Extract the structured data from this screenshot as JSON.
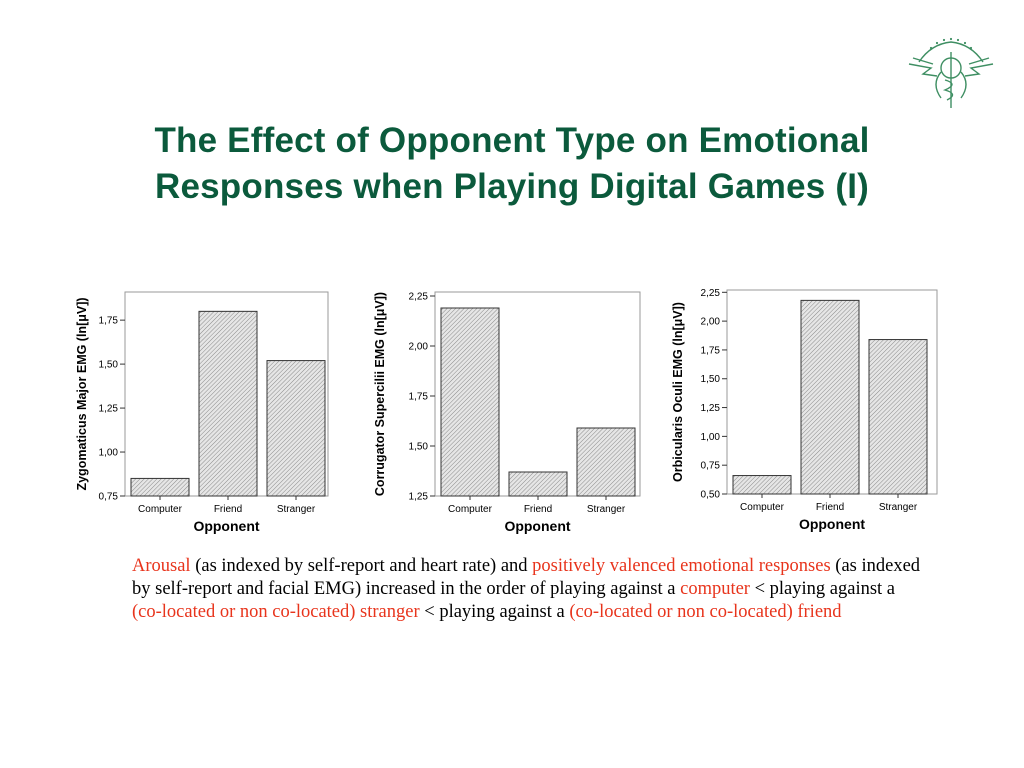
{
  "slide": {
    "title_line1": "The Effect of Opponent Type on Emotional",
    "title_line2": "Responses when Playing Digital Games (I)",
    "title_color": "#0b5a3c",
    "highlight_color": "#e8341c"
  },
  "note": {
    "s1": "Arousal",
    "s2": " (as indexed by self-report and heart rate) and ",
    "s3": "positively valenced emotional responses",
    "s4": " (as indexed by self-report and facial EMG) increased in the order of playing against a ",
    "s5": "computer",
    "s6": " < playing against a ",
    "s7": "(co-located or non co-located) stranger",
    "s8": " < playing against a ",
    "s9": "(co-located or non co-located) friend"
  },
  "chart_data": [
    {
      "type": "bar",
      "categories": [
        "Computer",
        "Friend",
        "Stranger"
      ],
      "values": [
        0.85,
        1.8,
        1.52
      ],
      "xlabel": "Opponent",
      "ylabel": "Zygomaticus Major EMG (ln[μV])",
      "ylim": [
        0.75,
        1.91
      ],
      "yticks": [
        0.75,
        1.0,
        1.25,
        1.5,
        1.75
      ],
      "ytick_labels": [
        "0,75",
        "1,00",
        "1,25",
        "1,50",
        "1,75"
      ],
      "grid": false,
      "bar_fill": "hatched grey"
    },
    {
      "type": "bar",
      "categories": [
        "Computer",
        "Friend",
        "Stranger"
      ],
      "values": [
        2.19,
        1.37,
        1.59
      ],
      "xlabel": "Opponent",
      "ylabel": "Corrugator Supercilii EMG (ln[μV])",
      "ylim": [
        1.25,
        2.27
      ],
      "yticks": [
        1.25,
        1.5,
        1.75,
        2.0,
        2.25
      ],
      "ytick_labels": [
        "1,25",
        "1,50",
        "1,75",
        "2,00",
        "2,25"
      ],
      "grid": false,
      "bar_fill": "hatched grey"
    },
    {
      "type": "bar",
      "categories": [
        "Computer",
        "Friend",
        "Stranger"
      ],
      "values": [
        0.66,
        2.18,
        1.84
      ],
      "xlabel": "Opponent",
      "ylabel": "Orbicularis Oculi EMG (ln[μV])",
      "ylim": [
        0.5,
        2.27
      ],
      "yticks": [
        0.5,
        0.75,
        1.0,
        1.25,
        1.5,
        1.75,
        2.0,
        2.25
      ],
      "ytick_labels": [
        "0,50",
        "0,75",
        "1,00",
        "1,25",
        "1,50",
        "1,75",
        "2,00",
        "2,25"
      ],
      "grid": false,
      "bar_fill": "hatched grey"
    }
  ]
}
